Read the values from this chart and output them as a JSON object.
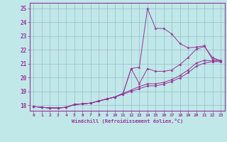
{
  "xlabel": "Windchill (Refroidissement éolien,°C)",
  "bg_color": "#c0e8e8",
  "line_color": "#993399",
  "grid_color": "#99bbcc",
  "xlim": [
    -0.5,
    23.5
  ],
  "ylim": [
    17.6,
    25.4
  ],
  "yticks": [
    18,
    19,
    20,
    21,
    22,
    23,
    24,
    25
  ],
  "xticks": [
    0,
    1,
    2,
    3,
    4,
    5,
    6,
    7,
    8,
    9,
    10,
    11,
    12,
    13,
    14,
    15,
    16,
    17,
    18,
    19,
    20,
    21,
    22,
    23
  ],
  "lines": [
    {
      "x": [
        0,
        1,
        2,
        3,
        4,
        5,
        6,
        7,
        8,
        9,
        10,
        11,
        12,
        13,
        14,
        15,
        16,
        17,
        18,
        19,
        20,
        21,
        22,
        23
      ],
      "y": [
        17.9,
        17.85,
        17.8,
        17.8,
        17.85,
        18.05,
        18.1,
        18.15,
        18.3,
        18.45,
        18.6,
        18.85,
        20.65,
        20.75,
        25.0,
        23.55,
        23.55,
        23.15,
        22.45,
        22.15,
        22.2,
        22.3,
        21.3,
        21.25
      ]
    },
    {
      "x": [
        0,
        1,
        2,
        3,
        4,
        5,
        6,
        7,
        8,
        9,
        10,
        11,
        12,
        13,
        14,
        15,
        16,
        17,
        18,
        19,
        20,
        21,
        22,
        23
      ],
      "y": [
        17.9,
        17.85,
        17.8,
        17.8,
        17.85,
        18.05,
        18.1,
        18.15,
        18.3,
        18.45,
        18.6,
        18.85,
        19.1,
        19.35,
        19.55,
        19.55,
        19.65,
        19.85,
        20.15,
        20.55,
        21.05,
        21.25,
        21.2,
        21.2
      ]
    },
    {
      "x": [
        0,
        1,
        2,
        3,
        4,
        5,
        6,
        7,
        8,
        9,
        10,
        11,
        12,
        13,
        14,
        15,
        16,
        17,
        18,
        19,
        20,
        21,
        22,
        23
      ],
      "y": [
        17.9,
        17.85,
        17.8,
        17.8,
        17.85,
        18.05,
        18.1,
        18.15,
        18.3,
        18.45,
        18.58,
        18.8,
        19.0,
        19.2,
        19.4,
        19.4,
        19.52,
        19.72,
        19.98,
        20.35,
        20.82,
        21.05,
        21.15,
        21.15
      ]
    },
    {
      "x": [
        0,
        1,
        2,
        3,
        4,
        5,
        6,
        7,
        8,
        9,
        10,
        11,
        12,
        13,
        14,
        15,
        16,
        17,
        18,
        19,
        20,
        21,
        22,
        23
      ],
      "y": [
        17.9,
        17.85,
        17.8,
        17.8,
        17.85,
        18.05,
        18.1,
        18.15,
        18.3,
        18.45,
        18.6,
        18.85,
        20.65,
        19.55,
        20.65,
        20.45,
        20.45,
        20.55,
        20.95,
        21.45,
        22.05,
        22.25,
        21.45,
        21.2
      ]
    }
  ]
}
